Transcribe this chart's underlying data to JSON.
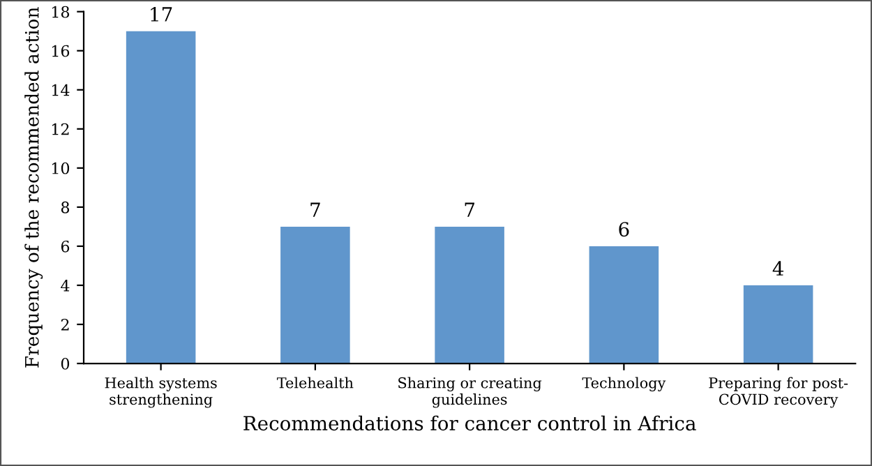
{
  "chart_data": {
    "type": "bar",
    "categories": [
      "Health systems\nstrengthening",
      "Telehealth",
      "Sharing or creating\nguidelines",
      "Technology",
      "Preparing for post-\nCOVID recovery"
    ],
    "values": [
      17,
      7,
      7,
      6,
      4
    ],
    "color": "#6096cc",
    "xlabel": "Recommendations for cancer control in Africa",
    "ylabel": "Frequency of the recommended action",
    "ylim": [
      0,
      18
    ],
    "yticks": [
      0,
      2,
      4,
      6,
      8,
      10,
      12,
      14,
      16,
      18
    ],
    "data_labels": true
  }
}
